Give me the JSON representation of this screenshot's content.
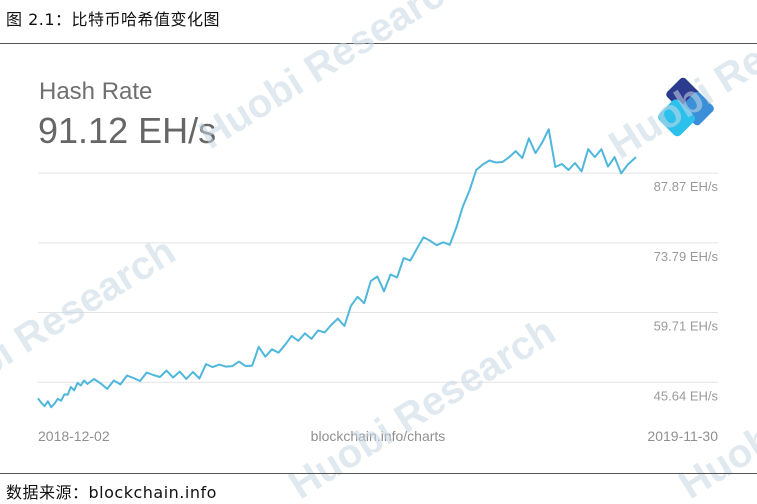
{
  "figure": {
    "caption": "图 2.1：比特币哈希值变化图",
    "source": "数据来源：blockchain.info"
  },
  "watermark": {
    "text": "Huobi Research"
  },
  "logo": {
    "icon": "blockchain-logo-icon",
    "colors": [
      "#2b3c8f",
      "#3a8fd8",
      "#2cc0ec"
    ]
  },
  "chart_data": {
    "type": "line",
    "title": "Hash Rate",
    "current_value": "91.12 EH/s",
    "xlabel": "",
    "ylabel": "",
    "x_tick_labels": [
      "2018-12-02",
      "2019-11-30"
    ],
    "center_label": "blockchain.info/charts",
    "xlim": [
      "2018-12-02",
      "2019-11-30"
    ],
    "ylim": [
      36,
      100
    ],
    "y_ticks": [
      {
        "value": 45.64,
        "label": "45.64 EH/s"
      },
      {
        "value": 59.71,
        "label": "59.71 EH/s"
      },
      {
        "value": 73.79,
        "label": "73.79 EH/s"
      },
      {
        "value": 87.87,
        "label": "87.87 EH/s"
      }
    ],
    "grid": true,
    "legend": "none",
    "line_color": "#4fb7dc",
    "series": [
      {
        "x": [
          "2018-12-02",
          "2018-12-04",
          "2018-12-06",
          "2018-12-08",
          "2018-12-10",
          "2018-12-12",
          "2018-12-14",
          "2018-12-16",
          "2018-12-18",
          "2018-12-20",
          "2018-12-22",
          "2018-12-24",
          "2018-12-26",
          "2018-12-28",
          "2018-12-30",
          "2019-01-01",
          "2019-01-05",
          "2019-01-09",
          "2019-01-13",
          "2019-01-17",
          "2019-01-21",
          "2019-01-25",
          "2019-01-29",
          "2019-02-02",
          "2019-02-06",
          "2019-02-10",
          "2019-02-14",
          "2019-02-18",
          "2019-02-22",
          "2019-02-26",
          "2019-03-02",
          "2019-03-06",
          "2019-03-10",
          "2019-03-14",
          "2019-03-18",
          "2019-03-22",
          "2019-03-26",
          "2019-03-30",
          "2019-04-03",
          "2019-04-07",
          "2019-04-11",
          "2019-04-15",
          "2019-04-19",
          "2019-04-23",
          "2019-04-27",
          "2019-05-01",
          "2019-05-05",
          "2019-05-09",
          "2019-05-13",
          "2019-05-17",
          "2019-05-21",
          "2019-05-25",
          "2019-05-29",
          "2019-06-02",
          "2019-06-06",
          "2019-06-10",
          "2019-06-14",
          "2019-06-18",
          "2019-06-22",
          "2019-06-26",
          "2019-06-30",
          "2019-07-04",
          "2019-07-08",
          "2019-07-12",
          "2019-07-16",
          "2019-07-20",
          "2019-07-24",
          "2019-07-28",
          "2019-08-01",
          "2019-08-05",
          "2019-08-09",
          "2019-08-13",
          "2019-08-17",
          "2019-08-21",
          "2019-08-25",
          "2019-08-29",
          "2019-09-02",
          "2019-09-06",
          "2019-09-10",
          "2019-09-14",
          "2019-09-18",
          "2019-09-22",
          "2019-09-26",
          "2019-09-30",
          "2019-10-04",
          "2019-10-08",
          "2019-10-12",
          "2019-10-16",
          "2019-10-20",
          "2019-10-24",
          "2019-10-28",
          "2019-11-01",
          "2019-11-05",
          "2019-11-09",
          "2019-11-13",
          "2019-11-17",
          "2019-11-21",
          "2019-11-25",
          "2019-11-30"
        ],
        "values": [
          42.4,
          41.5,
          40.8,
          41.8,
          40.6,
          41.3,
          42.3,
          41.9,
          43.2,
          43.1,
          44.7,
          44.0,
          45.5,
          45.0,
          46.0,
          45.3,
          46.3,
          45.4,
          44.3,
          46.0,
          45.2,
          47.0,
          46.5,
          45.9,
          47.6,
          47.1,
          46.7,
          48.0,
          46.6,
          47.8,
          46.3,
          47.7,
          46.4,
          49.3,
          48.7,
          49.2,
          48.8,
          48.9,
          49.8,
          48.9,
          49.0,
          52.8,
          50.8,
          52.3,
          51.6,
          53.2,
          55.0,
          54.0,
          55.5,
          54.4,
          56.1,
          55.7,
          57.2,
          58.5,
          57.0,
          61.1,
          62.9,
          61.6,
          66.1,
          67.0,
          64.0,
          67.4,
          66.8,
          70.7,
          70.2,
          72.6,
          74.9,
          74.2,
          73.3,
          73.9,
          73.4,
          76.9,
          81.2,
          84.4,
          88.5,
          89.6,
          90.4,
          90.0,
          90.1,
          91.1,
          92.3,
          90.9,
          94.9,
          91.9,
          94.0,
          96.7,
          89.1,
          89.7,
          88.5,
          89.9,
          88.2,
          92.7,
          91.1,
          92.7,
          89.2,
          91.1,
          87.8,
          89.6,
          91.1
        ]
      }
    ]
  }
}
